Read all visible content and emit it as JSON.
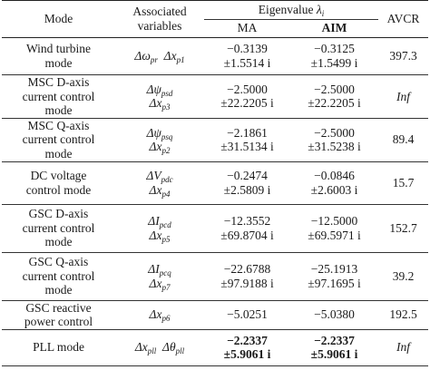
{
  "header": {
    "mode": "Mode",
    "assoc": "Associated variables",
    "eig_main": "Eigenvalue",
    "eig_sym": "λ",
    "eig_sub": "i",
    "ma": "MA",
    "aim": "AIM",
    "avcr": "AVCR"
  },
  "rows": [
    {
      "mode": "Wind turbine mode",
      "vars": [
        [
          "Δω",
          "pr"
        ],
        [
          "Δx",
          "p1"
        ]
      ],
      "ma": [
        "−0.3139",
        "±1.5514 i"
      ],
      "aim": [
        "−0.3125",
        "±1.5499 i"
      ],
      "avcr": "397.3"
    },
    {
      "mode": "MSC D-axis current control mode",
      "vars": [
        [
          "Δψ",
          "psd"
        ],
        [
          "Δx",
          "p3"
        ]
      ],
      "ma": [
        "−2.5000",
        "±22.2205 i"
      ],
      "aim": [
        "−2.5000",
        "±22.2205 i"
      ],
      "avcr": "Inf"
    },
    {
      "mode": "MSC Q-axis current control mode",
      "vars": [
        [
          "Δψ",
          "psq"
        ],
        [
          "Δx",
          "p2"
        ]
      ],
      "ma": [
        "−2.1861",
        "±31.5134 i"
      ],
      "aim": [
        "−2.5000",
        "±31.5238 i"
      ],
      "avcr": "89.4"
    },
    {
      "mode": "DC voltage control mode",
      "vars": [
        [
          "ΔV",
          "pdc"
        ],
        [
          "Δx",
          "p4"
        ]
      ],
      "ma": [
        "−0.2474",
        "±2.5809 i"
      ],
      "aim": [
        "−0.0846",
        "±2.6003 i"
      ],
      "avcr": "15.7"
    },
    {
      "mode": "GSC D-axis current control mode",
      "vars": [
        [
          "ΔI",
          "pcd"
        ],
        [
          "Δx",
          "p5"
        ]
      ],
      "ma": [
        "−12.3552",
        "±69.8704 i"
      ],
      "aim": [
        "−12.5000",
        "±69.5971 i"
      ],
      "avcr": "152.7"
    },
    {
      "mode": "GSC Q-axis current control mode",
      "vars": [
        [
          "ΔI",
          "pcq"
        ],
        [
          "Δx",
          "p7"
        ]
      ],
      "ma": [
        "−22.6788",
        "±97.9188 i"
      ],
      "aim": [
        "−25.1913",
        "±97.1695 i"
      ],
      "avcr": "39.2"
    },
    {
      "mode": "GSC reactive power control",
      "vars": [
        [
          "Δx",
          "p6"
        ]
      ],
      "ma": [
        "−5.0251"
      ],
      "aim": [
        "−5.0380"
      ],
      "avcr": "192.5"
    },
    {
      "mode": "PLL mode",
      "vars": [
        [
          "Δx",
          "pll"
        ],
        [
          "Δθ",
          "pll"
        ]
      ],
      "ma": [
        "−2.2337",
        "±5.9061 i"
      ],
      "aim": [
        "−2.2337",
        "±5.9061 i"
      ],
      "avcr": "Inf"
    }
  ]
}
